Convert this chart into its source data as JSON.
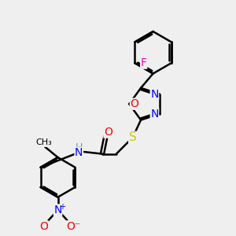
{
  "bg_color": "#efefef",
  "line_color": "#000000",
  "bond_width": 1.8,
  "atom_colors": {
    "N": "#0000ff",
    "O": "#ff0000",
    "S": "#cccc00",
    "F": "#ff00cc",
    "H": "#5a9a9a",
    "C": "#000000"
  },
  "font_size": 10
}
